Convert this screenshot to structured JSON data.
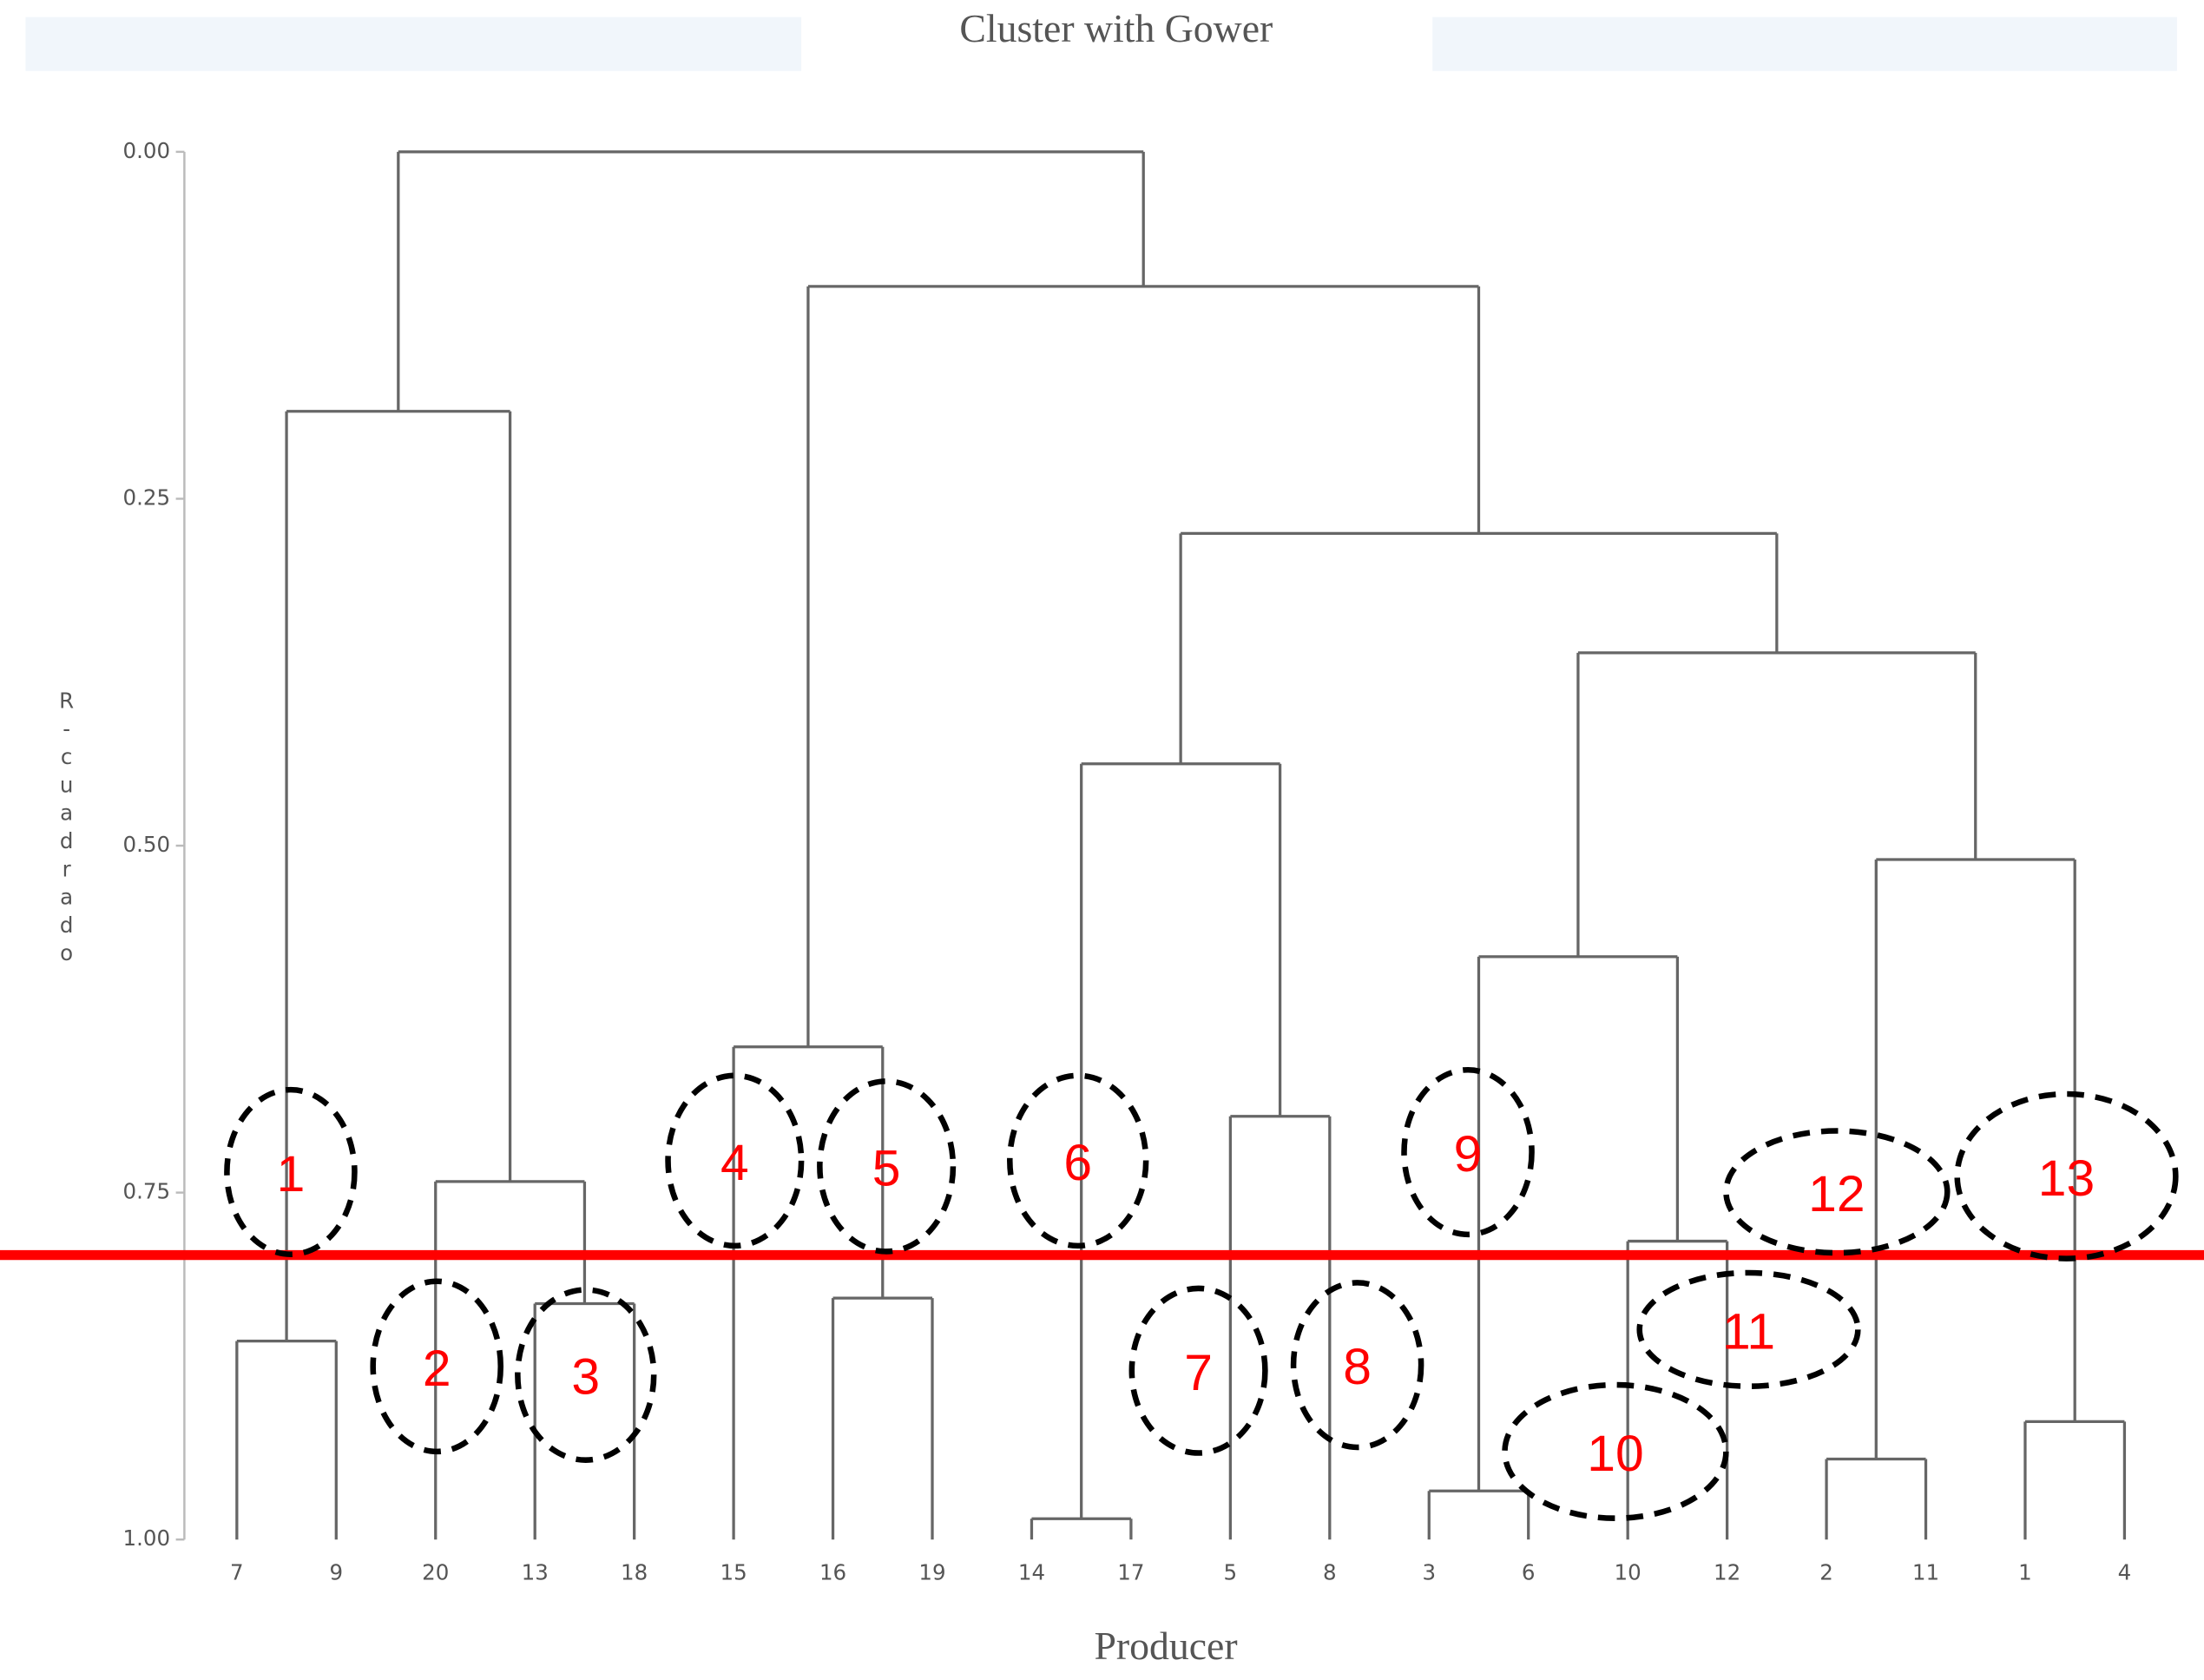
{
  "chart_data": {
    "type": "dendrogram",
    "title": "Cluster with Gower",
    "x_label": "Producer",
    "y_label": "R-cuadrado",
    "leaves": [
      "7",
      "9",
      "20",
      "13",
      "18",
      "15",
      "16",
      "19",
      "14",
      "17",
      "5",
      "8",
      "3",
      "6",
      "10",
      "12",
      "2",
      "11",
      "1",
      "4"
    ],
    "merges": [
      {
        "children": [
          0,
          1
        ],
        "height": 0.857
      },
      {
        "children": [
          3,
          4
        ],
        "height": 0.83
      },
      {
        "children": [
          2,
          21
        ],
        "height": 0.742
      },
      {
        "children": [
          20,
          22
        ],
        "height": 0.187
      },
      {
        "children": [
          6,
          7
        ],
        "height": 0.826
      },
      {
        "children": [
          5,
          24
        ],
        "height": 0.645
      },
      {
        "children": [
          8,
          9
        ],
        "height": 0.985
      },
      {
        "children": [
          10,
          11
        ],
        "height": 0.695
      },
      {
        "children": [
          26,
          27
        ],
        "height": 0.441
      },
      {
        "children": [
          12,
          13
        ],
        "height": 0.965
      },
      {
        "children": [
          14,
          15
        ],
        "height": 0.785
      },
      {
        "children": [
          29,
          30
        ],
        "height": 0.58
      },
      {
        "children": [
          16,
          17
        ],
        "height": 0.942
      },
      {
        "children": [
          18,
          19
        ],
        "height": 0.915
      },
      {
        "children": [
          32,
          33
        ],
        "height": 0.51
      },
      {
        "children": [
          31,
          34
        ],
        "height": 0.361
      },
      {
        "children": [
          28,
          35
        ],
        "height": 0.275
      },
      {
        "children": [
          25,
          36
        ],
        "height": 0.097
      },
      {
        "children": [
          23,
          37
        ],
        "height": 0.0
      }
    ],
    "ylim": [
      0,
      1
    ],
    "yticks": [
      {
        "value": 0,
        "label": "0.00"
      },
      {
        "value": 0.25,
        "label": "0.25"
      },
      {
        "value": 0.5,
        "label": "0.50"
      },
      {
        "value": 0.75,
        "label": "0.75"
      },
      {
        "value": 1,
        "label": "1.00"
      }
    ],
    "line_color": "#666666",
    "cut_line": {
      "value": 0.795,
      "color": "#ff0000"
    },
    "annotations": [
      "1",
      "2",
      "3",
      "4",
      "5",
      "6",
      "7",
      "8",
      "9",
      "10",
      "11",
      "12",
      "13"
    ]
  }
}
